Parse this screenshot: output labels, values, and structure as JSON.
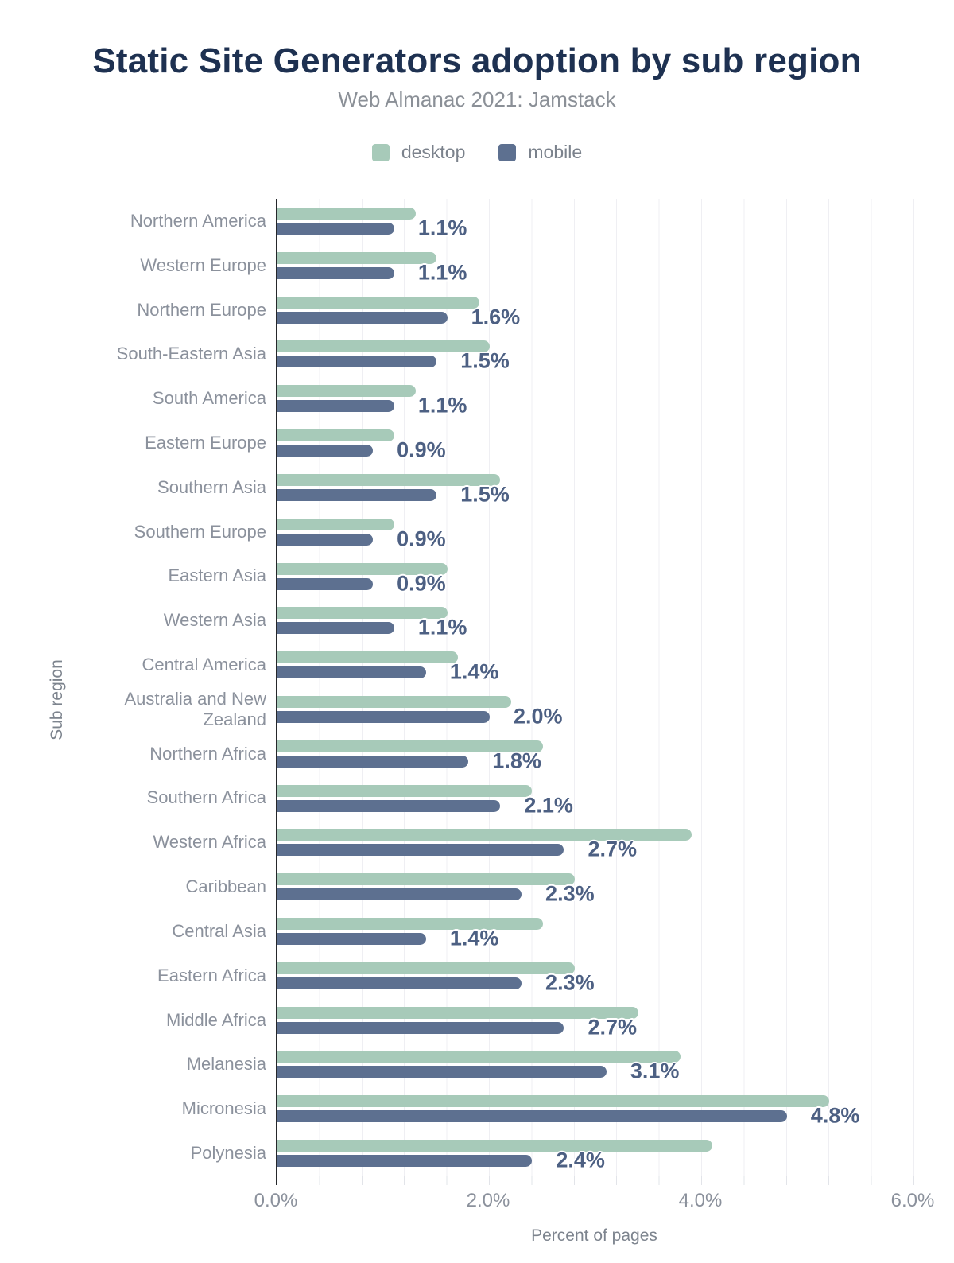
{
  "chart": {
    "title": "Static Site Generators adoption by sub region",
    "subtitle": "Web Almanac 2021: Jamstack",
    "x_axis_title": "Percent of pages",
    "y_axis_title": "Sub region"
  },
  "chart_data": {
    "type": "bar",
    "orientation": "horizontal",
    "title": "Static Site Generators adoption by sub region",
    "subtitle": "Web Almanac 2021: Jamstack",
    "xlabel": "Percent of pages",
    "ylabel": "Sub region",
    "xlim": [
      0,
      6
    ],
    "x_ticks": [
      "0.0%",
      "2.0%",
      "4.0%",
      "6.0%"
    ],
    "x_tick_values": [
      0,
      2,
      4,
      6
    ],
    "minor_gridline_interval": 0.4,
    "grid": true,
    "legend_position": "top",
    "categories": [
      "Northern America",
      "Western Europe",
      "Northern Europe",
      "South-Eastern Asia",
      "South America",
      "Eastern Europe",
      "Southern Asia",
      "Southern Europe",
      "Eastern Asia",
      "Western Asia",
      "Central America",
      "Australia and New\nZealand",
      "Northern Africa",
      "Southern Africa",
      "Western Africa",
      "Caribbean",
      "Central Asia",
      "Eastern Africa",
      "Middle Africa",
      "Melanesia",
      "Micronesia",
      "Polynesia"
    ],
    "series": [
      {
        "name": "desktop",
        "color": "#a7cab9",
        "values": [
          1.3,
          1.5,
          1.9,
          2.0,
          1.3,
          1.1,
          2.1,
          1.1,
          1.6,
          1.6,
          1.7,
          2.2,
          2.5,
          2.4,
          3.9,
          2.8,
          2.5,
          2.8,
          3.4,
          3.8,
          5.2,
          4.1
        ]
      },
      {
        "name": "mobile",
        "color": "#5d7090",
        "values": [
          1.1,
          1.1,
          1.6,
          1.5,
          1.1,
          0.9,
          1.5,
          0.9,
          0.9,
          1.1,
          1.4,
          2.0,
          1.8,
          2.1,
          2.7,
          2.3,
          1.4,
          2.3,
          2.7,
          3.1,
          4.8,
          2.4
        ]
      }
    ],
    "data_labels": [
      "1.1%",
      "1.1%",
      "1.6%",
      "1.5%",
      "1.1%",
      "0.9%",
      "1.5%",
      "0.9%",
      "0.9%",
      "1.1%",
      "1.4%",
      "2.0%",
      "1.8%",
      "2.1%",
      "2.7%",
      "2.3%",
      "1.4%",
      "2.3%",
      "2.7%",
      "3.1%",
      "4.8%",
      "2.4%"
    ],
    "data_label_series": "mobile",
    "colors": {
      "title": "#1e3151",
      "subtitle": "#8b9097",
      "axis_line": "#26282b",
      "category_label": "#8b919c",
      "value_label": "#4d6083",
      "gridline": "#efeff3"
    }
  }
}
